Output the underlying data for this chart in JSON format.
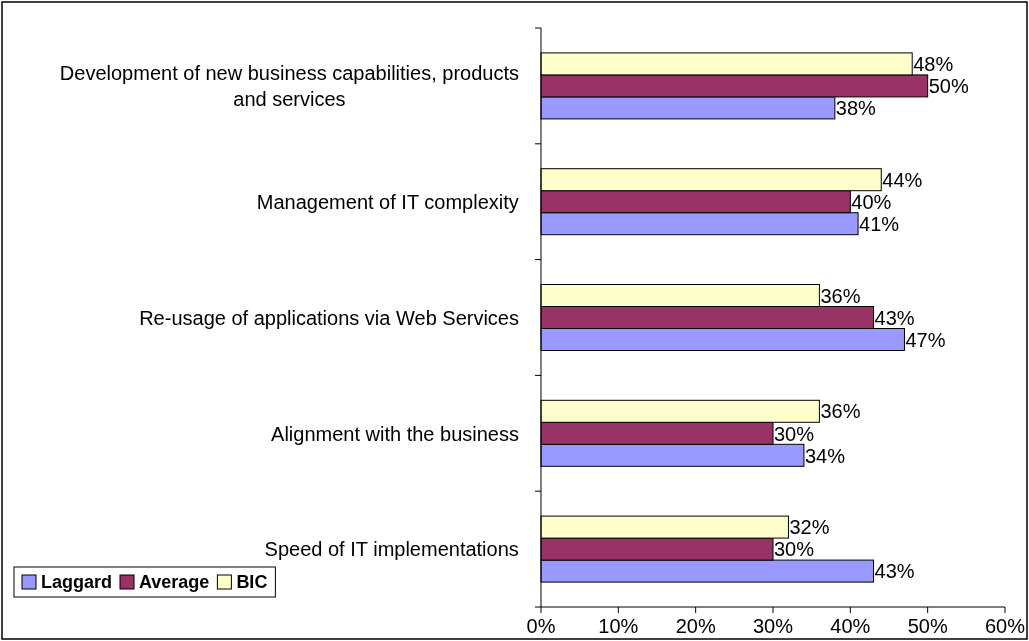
{
  "chart_data": {
    "type": "bar",
    "orientation": "horizontal",
    "categories": [
      "Development of new business capabilities, products and services",
      "Management of IT complexity",
      "Re-usage of applications via Web Services",
      "Alignment with the business",
      "Speed of IT implementations"
    ],
    "series": [
      {
        "name": "Laggard",
        "color": "#9999ff",
        "values": [
          38,
          41,
          47,
          34,
          43
        ],
        "value_labels": [
          "38%",
          "41%",
          "47%",
          "34%",
          "43%"
        ]
      },
      {
        "name": "Average",
        "color": "#993366",
        "values": [
          50,
          40,
          43,
          30,
          30
        ],
        "value_labels": [
          "50%",
          "40%",
          "43%",
          "30%",
          "30%"
        ]
      },
      {
        "name": "BIC",
        "color": "#ffffcc",
        "values": [
          48,
          44,
          36,
          36,
          32
        ],
        "value_labels": [
          "48%",
          "44%",
          "36%",
          "36%",
          "32%"
        ]
      }
    ],
    "xlim": [
      0,
      60
    ],
    "xticks": [
      {
        "value": 0,
        "label": "0%"
      },
      {
        "value": 10,
        "label": "10%"
      },
      {
        "value": 20,
        "label": "20%"
      },
      {
        "value": 30,
        "label": "30%"
      },
      {
        "value": 40,
        "label": "40%"
      },
      {
        "value": 50,
        "label": "50%"
      },
      {
        "value": 60,
        "label": "60%"
      }
    ],
    "grid": false,
    "legend": "bottom left"
  }
}
